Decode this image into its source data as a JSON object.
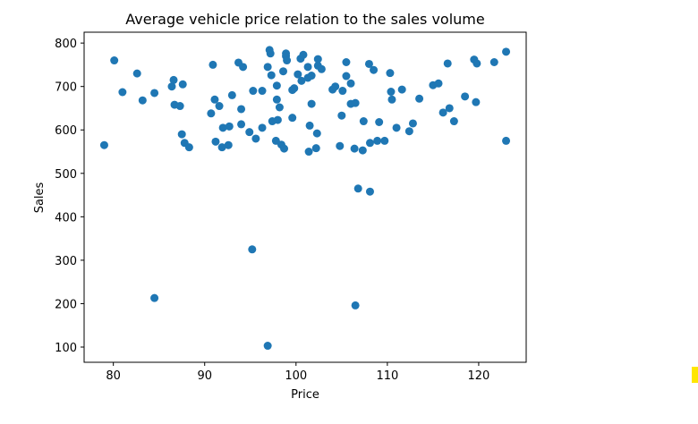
{
  "chart_data": {
    "type": "scatter",
    "title": "Average vehicle price relation to the sales volume",
    "xlabel": "Price",
    "ylabel": "Sales",
    "xlim": [
      76.8,
      125.2
    ],
    "ylim": [
      65,
      825
    ],
    "xticks": [
      80,
      90,
      100,
      110,
      120
    ],
    "yticks": [
      100,
      200,
      300,
      400,
      500,
      600,
      700,
      800
    ],
    "grid": false,
    "marker_color": "#1f77b4",
    "points": [
      [
        79.0,
        565
      ],
      [
        80.1,
        760
      ],
      [
        81.0,
        687
      ],
      [
        82.6,
        730
      ],
      [
        83.2,
        668
      ],
      [
        84.5,
        685
      ],
      [
        84.5,
        213
      ],
      [
        86.4,
        700
      ],
      [
        86.6,
        715
      ],
      [
        86.7,
        658
      ],
      [
        87.3,
        655
      ],
      [
        87.5,
        590
      ],
      [
        87.6,
        705
      ],
      [
        87.8,
        570
      ],
      [
        88.3,
        560
      ],
      [
        90.7,
        638
      ],
      [
        90.9,
        750
      ],
      [
        91.1,
        670
      ],
      [
        91.2,
        573
      ],
      [
        91.6,
        655
      ],
      [
        91.9,
        560
      ],
      [
        92.0,
        605
      ],
      [
        92.6,
        565
      ],
      [
        92.7,
        608
      ],
      [
        93.0,
        680
      ],
      [
        93.7,
        755
      ],
      [
        94.0,
        648
      ],
      [
        94.0,
        613
      ],
      [
        94.2,
        745
      ],
      [
        94.9,
        595
      ],
      [
        95.2,
        325
      ],
      [
        95.3,
        690
      ],
      [
        95.6,
        580
      ],
      [
        96.3,
        690
      ],
      [
        96.3,
        605
      ],
      [
        96.9,
        745
      ],
      [
        96.9,
        103
      ],
      [
        97.1,
        784
      ],
      [
        97.2,
        776
      ],
      [
        97.3,
        726
      ],
      [
        97.4,
        620
      ],
      [
        97.8,
        575
      ],
      [
        97.9,
        702
      ],
      [
        97.9,
        670
      ],
      [
        98.0,
        623
      ],
      [
        98.2,
        652
      ],
      [
        98.4,
        566
      ],
      [
        98.6,
        735
      ],
      [
        98.7,
        557
      ],
      [
        98.9,
        770
      ],
      [
        98.9,
        776
      ],
      [
        99.0,
        760
      ],
      [
        99.6,
        692
      ],
      [
        99.6,
        628
      ],
      [
        99.8,
        696
      ],
      [
        100.2,
        728
      ],
      [
        100.5,
        764
      ],
      [
        100.6,
        713
      ],
      [
        100.8,
        773
      ],
      [
        101.3,
        745
      ],
      [
        101.3,
        720
      ],
      [
        101.4,
        550
      ],
      [
        101.5,
        610
      ],
      [
        101.7,
        725
      ],
      [
        101.7,
        660
      ],
      [
        102.2,
        558
      ],
      [
        102.3,
        592
      ],
      [
        102.4,
        763
      ],
      [
        102.4,
        748
      ],
      [
        102.8,
        740
      ],
      [
        104.0,
        693
      ],
      [
        104.3,
        700
      ],
      [
        104.8,
        563
      ],
      [
        105.0,
        633
      ],
      [
        105.1,
        690
      ],
      [
        105.5,
        724
      ],
      [
        105.5,
        756
      ],
      [
        106.0,
        707
      ],
      [
        106.0,
        660
      ],
      [
        106.4,
        557
      ],
      [
        106.5,
        662
      ],
      [
        106.5,
        196
      ],
      [
        106.8,
        465
      ],
      [
        107.3,
        553
      ],
      [
        107.4,
        620
      ],
      [
        108.0,
        752
      ],
      [
        108.1,
        570
      ],
      [
        108.1,
        458
      ],
      [
        108.5,
        738
      ],
      [
        108.9,
        575
      ],
      [
        109.1,
        618
      ],
      [
        109.7,
        575
      ],
      [
        110.3,
        731
      ],
      [
        110.4,
        688
      ],
      [
        110.5,
        670
      ],
      [
        111.0,
        605
      ],
      [
        111.6,
        693
      ],
      [
        112.4,
        597
      ],
      [
        112.8,
        615
      ],
      [
        113.5,
        672
      ],
      [
        115.0,
        703
      ],
      [
        115.6,
        707
      ],
      [
        116.1,
        640
      ],
      [
        116.6,
        753
      ],
      [
        116.8,
        650
      ],
      [
        117.3,
        620
      ],
      [
        118.5,
        677
      ],
      [
        119.5,
        762
      ],
      [
        119.7,
        664
      ],
      [
        119.8,
        753
      ],
      [
        121.7,
        756
      ],
      [
        123.0,
        780
      ],
      [
        123.0,
        575
      ]
    ]
  }
}
